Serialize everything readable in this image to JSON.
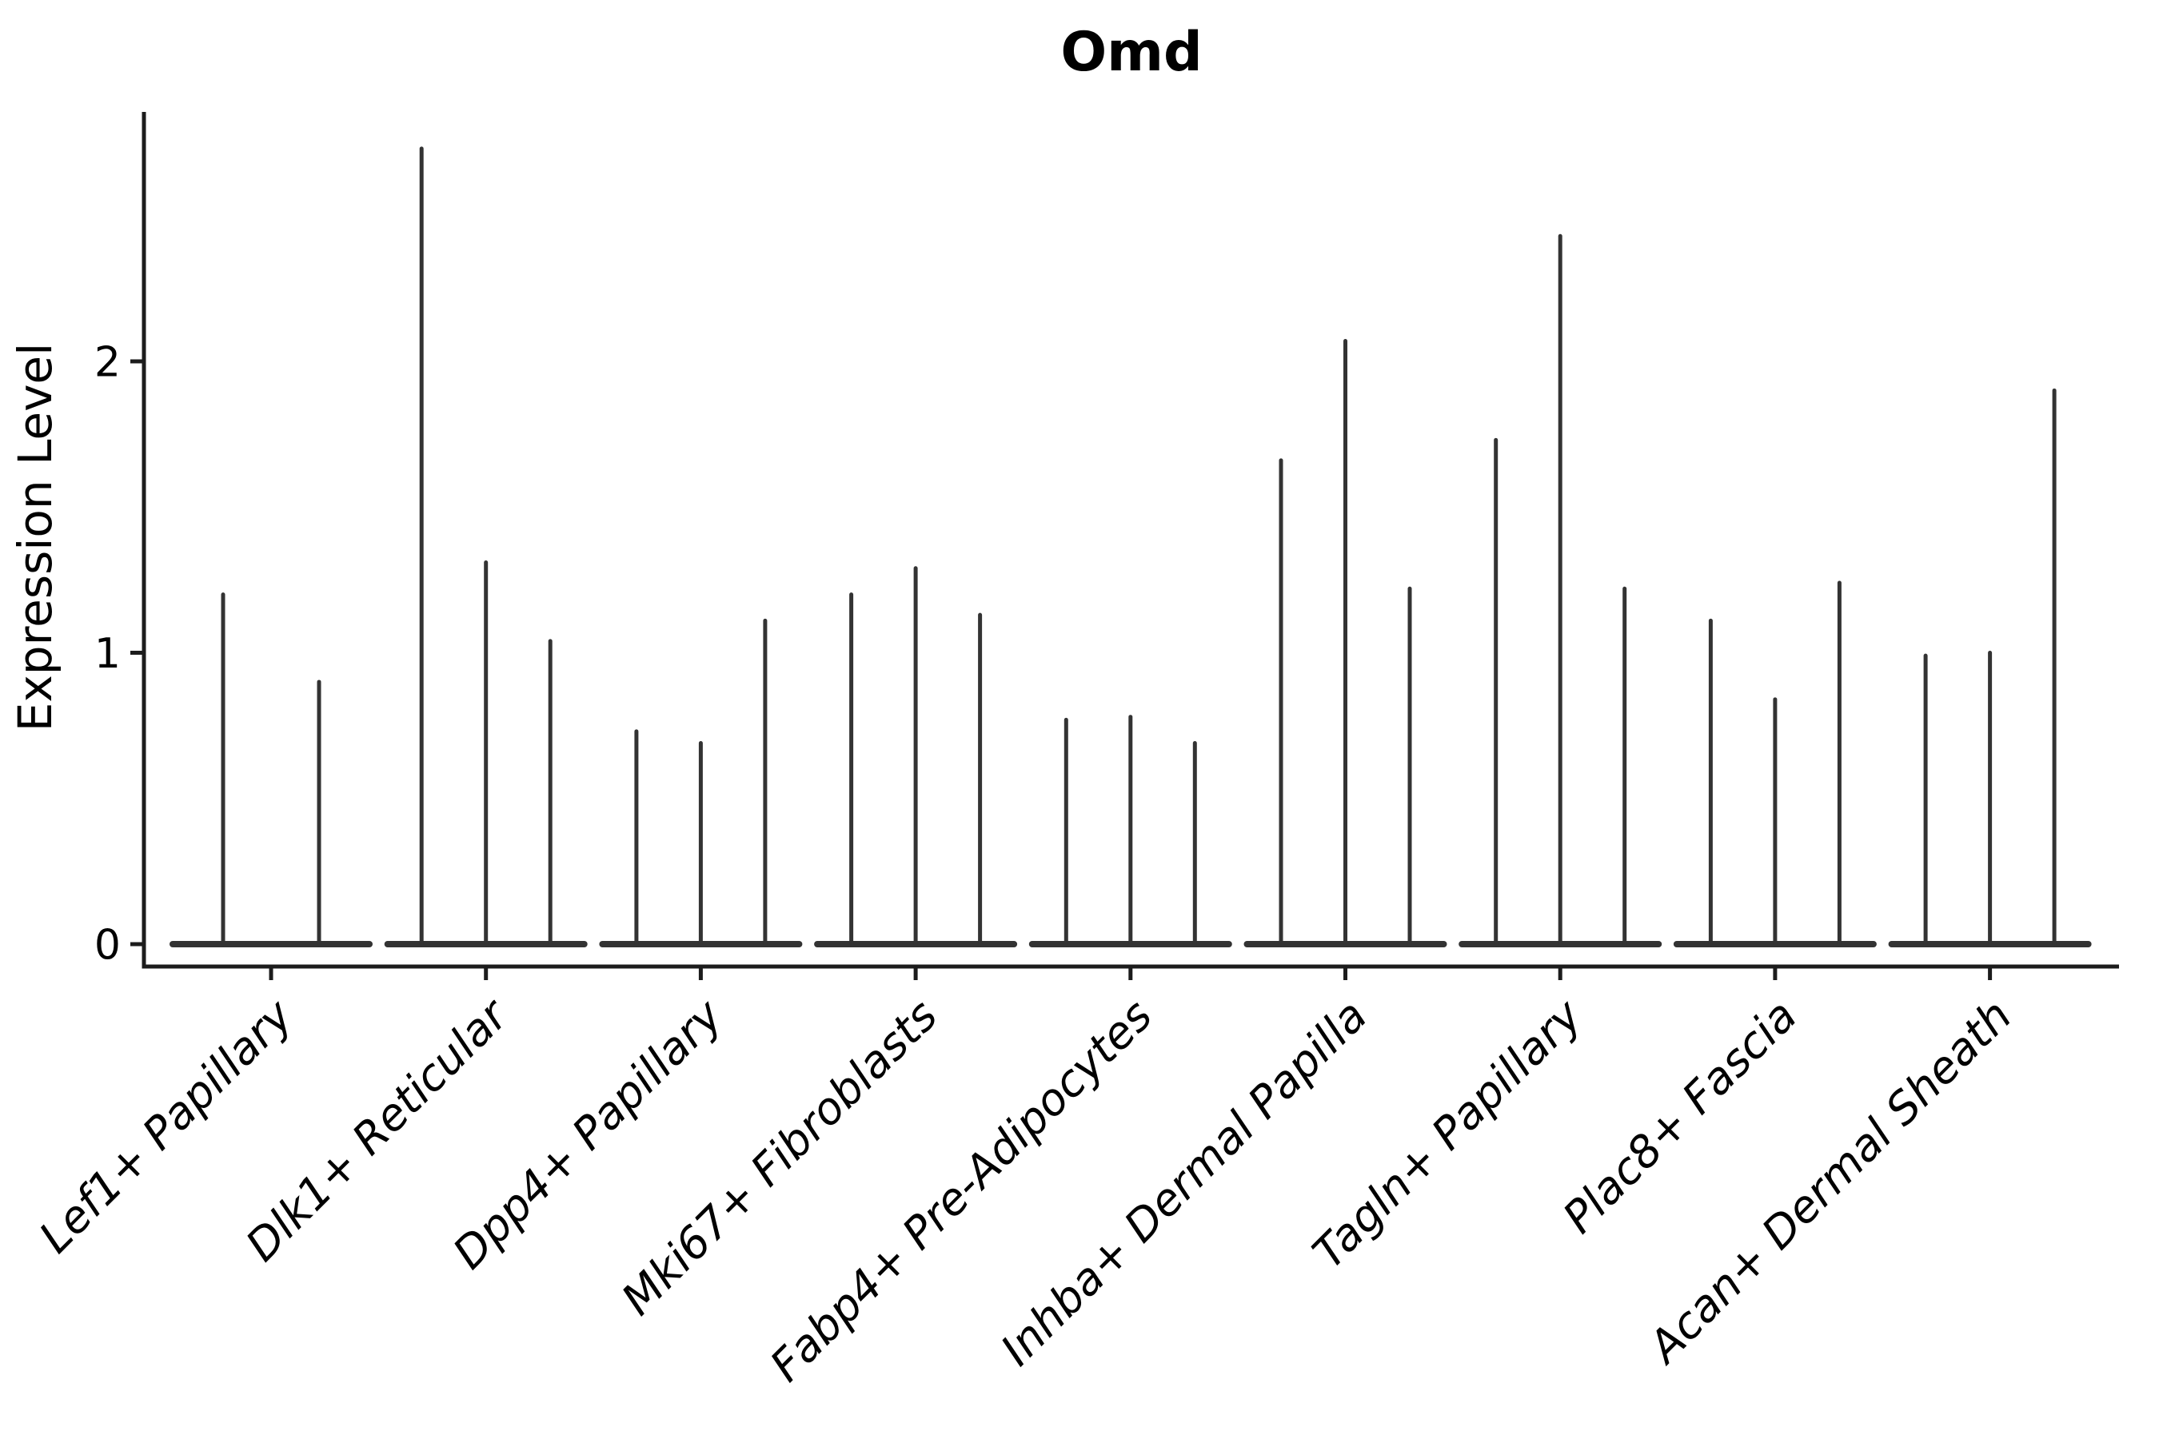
{
  "chart_data": {
    "type": "violin",
    "title": "Omd",
    "ylabel": "Expression Level",
    "xlabel": "",
    "yticks": [
      0,
      1,
      2
    ],
    "ylim": [
      -0.18,
      2.85
    ],
    "grid": false,
    "legend": null,
    "x_label_rotation": 45,
    "x_label_style": "italic",
    "line_color": "#333333",
    "axis_color": "#1c1c1c",
    "background_color": "#ffffff",
    "groups": [
      {
        "label": "Lef1+ Papillary",
        "violin_maxima": [
          1.2,
          0.9
        ]
      },
      {
        "label": "Dlk1+ Reticular",
        "violin_maxima": [
          2.73,
          1.31,
          1.04
        ]
      },
      {
        "label": "Dpp4+ Papillary",
        "violin_maxima": [
          0.73,
          0.69,
          1.11
        ]
      },
      {
        "label": "Mki67+ Fibroblasts",
        "violin_maxima": [
          1.2,
          1.29,
          1.13
        ]
      },
      {
        "label": "Fabp4+ Pre-Adipocytes",
        "violin_maxima": [
          0.77,
          0.78,
          0.69
        ]
      },
      {
        "label": "Inhba+ Dermal Papilla",
        "violin_maxima": [
          1.66,
          2.07,
          1.22
        ]
      },
      {
        "label": "Tagln+ Papillary",
        "violin_maxima": [
          1.73,
          2.43,
          1.22
        ]
      },
      {
        "label": "Plac8+ Fascia",
        "violin_maxima": [
          1.11,
          0.84,
          1.24
        ]
      },
      {
        "label": "Acan+ Dermal Sheath",
        "violin_maxima": [
          0.99,
          1.0,
          1.9
        ]
      }
    ]
  }
}
